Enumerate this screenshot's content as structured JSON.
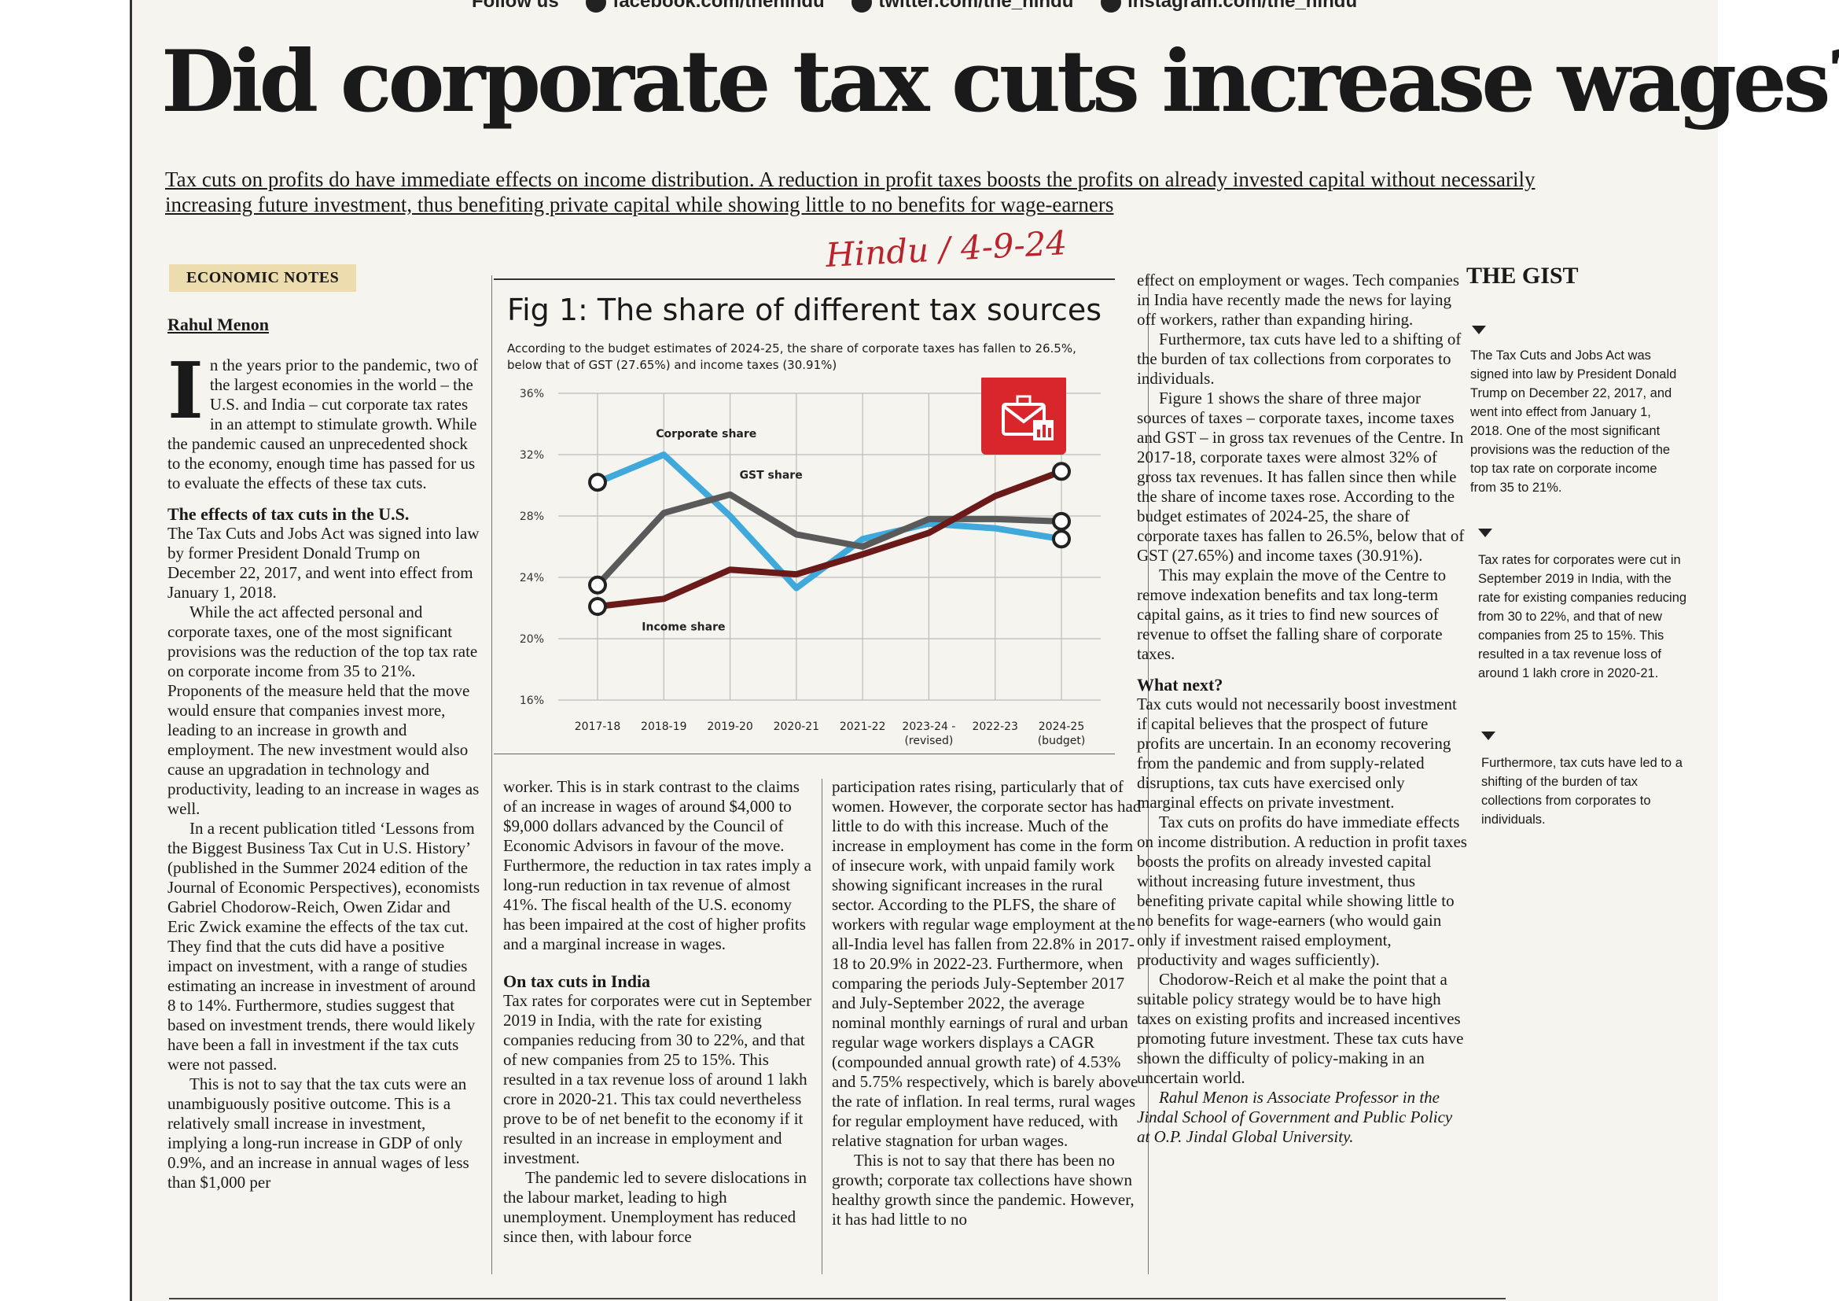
{
  "follow_bar": {
    "label": "Follow us",
    "facebook": "facebook.com/thehindu",
    "twitter": "twitter.com/the_hindu",
    "instagram": "instagram.com/the_hindu"
  },
  "headline": "Did corporate tax cuts increase wages?",
  "standfirst": "Tax cuts on profits do have immediate effects on income distribution. A reduction in profit taxes boosts the profits on already invested capital without necessarily increasing future investment, thus benefiting private capital while showing little to no benefits for wage-earners",
  "handwritten_note": "Hindu / 4-9-24",
  "kicker": "ECONOMIC NOTES",
  "byline": "Rahul Menon",
  "col1": {
    "dropcap": "I",
    "p1": "n the years prior to the pandemic, two of the largest economies in the world – the U.S. and India – cut corporate tax rates in an attempt to stimulate growth. While the pandemic caused an unprecedented shock to the economy, enough time has passed for us to evaluate the effects of these tax cuts.",
    "h1": "The effects of tax cuts in the U.S.",
    "p2": "The Tax Cuts and Jobs Act was signed into law by former President Donald Trump on December 22, 2017, and went into effect from January 1, 2018.",
    "p3": "While the act affected personal and corporate taxes, one of the most significant provisions was the reduction of the top tax rate on corporate income from 35 to 21%. Proponents of the measure held that the move would ensure that companies invest more, leading to an increase in growth and employment. The new investment would also cause an upgradation in technology and productivity, leading to an increase in wages as well.",
    "p4": "In a recent publication titled ‘Lessons from the Biggest Business Tax Cut in U.S. History’ (published in the Summer 2024 edition of the Journal of Economic Perspectives), economists Gabriel Chodorow-Reich, Owen Zidar and Eric Zwick examine the effects of the tax cut. They find that the cuts did have a positive impact on investment, with a range of studies estimating an increase in investment of around 8 to 14%. Furthermore, studies suggest that based on investment trends, there would likely have been a fall in investment if the tax cuts were not passed.",
    "p5": "This is not to say that the tax cuts were an unambiguously positive outcome. This is a relatively small increase in investment, implying a long-run increase in GDP of only 0.9%, and an increase in annual wages of less than $1,000 per"
  },
  "col2": {
    "p1": "worker. This is in stark contrast to the claims of an increase in wages of around $4,000 to $9,000 dollars advanced by the Council of Economic Advisors in favour of the move. Furthermore, the reduction in tax rates imply a long-run reduction in tax revenue of almost 41%. The fiscal health of the U.S. economy has been impaired at the cost of higher profits and a marginal increase in wages.",
    "h1": "On tax cuts in India",
    "p2": "Tax rates for corporates were cut in September 2019 in India, with the rate for existing companies reducing from 30 to 22%, and that of new companies from 25 to 15%. This resulted in a tax revenue loss of around 1 lakh crore in 2020-21. This tax could nevertheless prove to be of net benefit to the economy if it resulted in an increase in employment and investment.",
    "p3": "The pandemic led to severe dislocations in the labour market, leading to high unemployment. Unemployment has reduced since then, with labour force"
  },
  "col3": {
    "p1": "participation rates rising, particularly that of women. However, the corporate sector has had little to do with this increase. Much of the increase in employment has come in the form of insecure work, with unpaid family work showing significant increases in the rural sector. According to the PLFS, the share of workers with regular wage employment at the all-India level has fallen from 22.8% in 2017-18 to 20.9% in 2022-23. Furthermore, when comparing the periods July-September 2017 and July-September 2022, the average nominal monthly earnings of rural and urban regular wage workers displays a CAGR (compounded annual growth rate) of 4.53% and 5.75% respectively, which is barely above the rate of inflation. In real terms, rural wages for regular employment have reduced, with relative stagnation for urban wages.",
    "p2": "This is not to say that there has been no growth; corporate tax collections have shown healthy growth since the pandemic. However, it has had little to no"
  },
  "col4": {
    "p1": "effect on employment or wages. Tech companies in India have recently made the news for laying off workers, rather than expanding hiring.",
    "p2": "Furthermore, tax cuts have led to a shifting of the burden of tax collections from corporates to individuals.",
    "p3": "Figure 1 shows the share of three major sources of taxes – corporate taxes, income taxes and GST – in gross tax revenues of the Centre. In 2017-18, corporate taxes were almost 32% of gross tax revenues. It has fallen since then while the share of income taxes rose. According to the budget estimates of 2024-25, the share of corporate taxes has fallen to 26.5%, below that of GST (27.65%) and income taxes (30.91%).",
    "p4": "This may explain the move of the Centre to remove indexation benefits and tax long-term capital gains, as it tries to find new sources of revenue to offset the falling share of corporate taxes.",
    "h1": "What next?",
    "p5": "Tax cuts would not necessarily boost investment if capital believes that the prospect of future profits are uncertain. In an economy recovering from the pandemic and from supply-related disruptions, tax cuts have exercised only marginal effects on private investment.",
    "p6": "Tax cuts on profits do have immediate effects on income distribution. A reduction in profit taxes boosts the profits on already invested capital without increasing future investment, thus benefiting private capital while showing little to no benefits for wage-earners (who would gain only if investment raised employment, productivity and wages sufficiently).",
    "p7": "Chodorow-Reich et al make the point that a suitable policy strategy would be to have high taxes on existing profits and increased incentives promoting future investment. These tax cuts have shown the difficulty of policy-making in an uncertain world.",
    "bio": "Rahul Menon is Associate Professor in the Jindal School of Government and Public Policy at O.P. Jindal Global University."
  },
  "gist": {
    "title": "THE GIST",
    "items": [
      "The Tax Cuts and Jobs Act was signed into law by President Donald Trump on December 22, 2017, and went into effect from January 1, 2018. One of the most significant provisions was the reduction of the top tax rate on corporate income from 35 to 21%.",
      "Tax rates for corporates were cut in September 2019 in India, with the rate for existing companies reducing from 30 to 22%, and that of new companies from 25 to 15%. This resulted in a tax revenue loss of around 1 lakh crore in 2020-21.",
      "Furthermore, tax cuts have led to a shifting of the burden of tax collections from corporates to individuals."
    ]
  },
  "colors": {
    "corporate": "#3fa9dc",
    "gst": "#5a5a5a",
    "income": "#6b1a1a",
    "icon": "#d8262c"
  },
  "chart_data": {
    "type": "line",
    "title": "Fig 1: The share of different tax sources",
    "subtitle": "According to the budget estimates of 2024-25, the share of corporate taxes has fallen to 26.5%, below that of GST (27.65%) and income taxes (30.91%)",
    "categories": [
      "2017-18",
      "2018-19",
      "2019-20",
      "2020-21",
      "2021-22",
      "2023-24 - (revised)",
      "2022-23",
      "2024-25 (budget)"
    ],
    "tick_labels": [
      {
        "line1": "2017-18",
        "line2": ""
      },
      {
        "line1": "2018-19",
        "line2": ""
      },
      {
        "line1": "2019-20",
        "line2": ""
      },
      {
        "line1": "2020-21",
        "line2": ""
      },
      {
        "line1": "2021-22",
        "line2": ""
      },
      {
        "line1": "2023-24 -",
        "line2": "(revised)"
      },
      {
        "line1": "2022-23",
        "line2": ""
      },
      {
        "line1": "2024-25",
        "line2": "(budget)"
      }
    ],
    "yticks": [
      "36%",
      "32%",
      "28%",
      "24%",
      "20%",
      "16%"
    ],
    "ylim": [
      16,
      36
    ],
    "grid": true,
    "series": [
      {
        "name": "Corporate share",
        "color_key": "corporate",
        "values": [
          30.2,
          32.0,
          28.0,
          23.3,
          26.5,
          27.5,
          27.2,
          26.5
        ]
      },
      {
        "name": "GST share",
        "color_key": "gst",
        "values": [
          23.5,
          28.2,
          29.4,
          26.8,
          26.0,
          27.8,
          27.8,
          27.65
        ]
      },
      {
        "name": "Income share",
        "color_key": "income",
        "values": [
          22.1,
          22.6,
          24.5,
          24.2,
          25.5,
          26.9,
          29.3,
          30.91
        ]
      }
    ]
  }
}
